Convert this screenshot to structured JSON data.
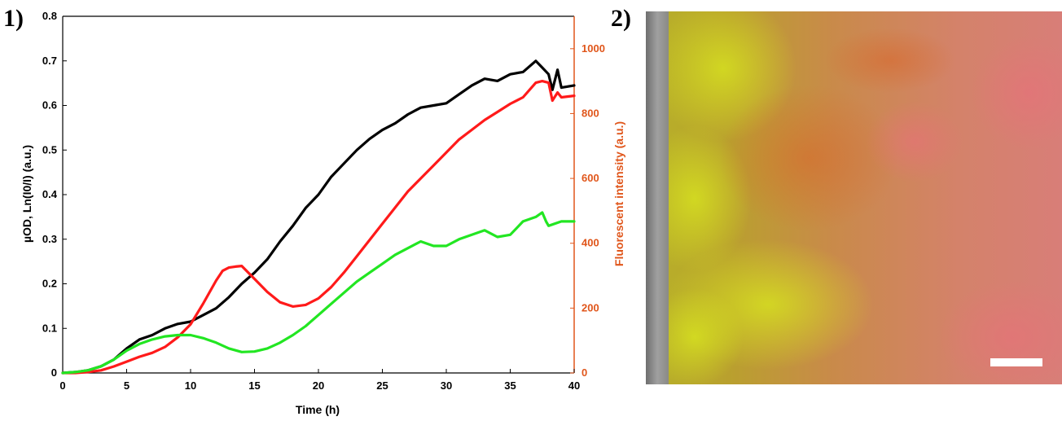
{
  "panels": {
    "left_label": "1)",
    "right_label": "2)"
  },
  "chart_data": {
    "type": "line",
    "title": "",
    "xlabel": "Time (h)",
    "ylabel": "µOD, Ln(I0/I) (a.u.)",
    "y2label": "Fluorescent intensity (a.u.)",
    "xlim": [
      0,
      40
    ],
    "ylim": [
      0,
      0.8
    ],
    "y2lim": [
      0,
      1100
    ],
    "xticks": [
      0,
      5,
      10,
      15,
      20,
      25,
      30,
      35,
      40
    ],
    "yticks": [
      0,
      0.1,
      0.2,
      0.3,
      0.4,
      0.5,
      0.6,
      0.7,
      0.8
    ],
    "y2ticks": [
      0,
      200,
      400,
      600,
      800,
      1000
    ],
    "grid": false,
    "legend": "none",
    "colors": {
      "black_series": "#000000",
      "red_series": "#ff1a1a",
      "green_series": "#22e622",
      "right_axis": "#e0561b"
    },
    "series": [
      {
        "axis": "left",
        "color": "#000000",
        "x": [
          0,
          1,
          2,
          3,
          4,
          5,
          6,
          7,
          8,
          9,
          10,
          11,
          12,
          13,
          14,
          15,
          16,
          17,
          18,
          19,
          20,
          21,
          22,
          23,
          24,
          25,
          26,
          27,
          28,
          29,
          30,
          31,
          32,
          33,
          34,
          35,
          36,
          37,
          37.5,
          38,
          38.3,
          38.7,
          39,
          40
        ],
        "y": [
          0,
          0.002,
          0.006,
          0.015,
          0.03,
          0.055,
          0.075,
          0.085,
          0.1,
          0.11,
          0.115,
          0.13,
          0.145,
          0.17,
          0.2,
          0.225,
          0.255,
          0.295,
          0.33,
          0.37,
          0.4,
          0.44,
          0.47,
          0.5,
          0.525,
          0.545,
          0.56,
          0.58,
          0.595,
          0.6,
          0.605,
          0.625,
          0.645,
          0.66,
          0.655,
          0.67,
          0.675,
          0.7,
          0.685,
          0.67,
          0.635,
          0.68,
          0.64,
          0.645
        ]
      },
      {
        "axis": "right",
        "color": "#ff1a1a",
        "x": [
          0,
          1,
          2,
          3,
          4,
          5,
          6,
          7,
          8,
          9,
          10,
          11,
          12,
          12.5,
          13,
          13.5,
          14,
          15,
          16,
          17,
          18,
          19,
          20,
          21,
          22,
          23,
          24,
          25,
          26,
          27,
          28,
          29,
          30,
          31,
          32,
          33,
          34,
          35,
          36,
          37,
          37.5,
          38,
          38.3,
          38.7,
          39,
          40
        ],
        "y": [
          0,
          0,
          3,
          8,
          20,
          35,
          50,
          62,
          80,
          110,
          150,
          215,
          285,
          315,
          325,
          328,
          330,
          290,
          250,
          218,
          205,
          210,
          230,
          265,
          310,
          360,
          410,
          460,
          510,
          560,
          600,
          640,
          680,
          720,
          750,
          780,
          805,
          830,
          850,
          895,
          900,
          895,
          840,
          865,
          850,
          855
        ]
      },
      {
        "axis": "left",
        "color": "#22e622",
        "x": [
          0,
          1,
          2,
          3,
          4,
          5,
          6,
          7,
          8,
          9,
          10,
          11,
          12,
          13,
          14,
          15,
          16,
          17,
          18,
          19,
          20,
          21,
          22,
          23,
          24,
          25,
          26,
          27,
          28,
          29,
          30,
          31,
          32,
          33,
          34,
          35,
          36,
          37,
          37.5,
          37.8,
          38,
          39,
          40
        ],
        "y": [
          0,
          0.002,
          0.006,
          0.015,
          0.03,
          0.05,
          0.065,
          0.075,
          0.082,
          0.085,
          0.085,
          0.078,
          0.068,
          0.055,
          0.047,
          0.048,
          0.055,
          0.068,
          0.085,
          0.105,
          0.13,
          0.155,
          0.18,
          0.205,
          0.225,
          0.245,
          0.265,
          0.28,
          0.295,
          0.285,
          0.285,
          0.3,
          0.31,
          0.32,
          0.305,
          0.31,
          0.34,
          0.35,
          0.36,
          0.34,
          0.33,
          0.34,
          0.34
        ]
      }
    ]
  },
  "scale_bar": {
    "color": "#ffffff"
  }
}
